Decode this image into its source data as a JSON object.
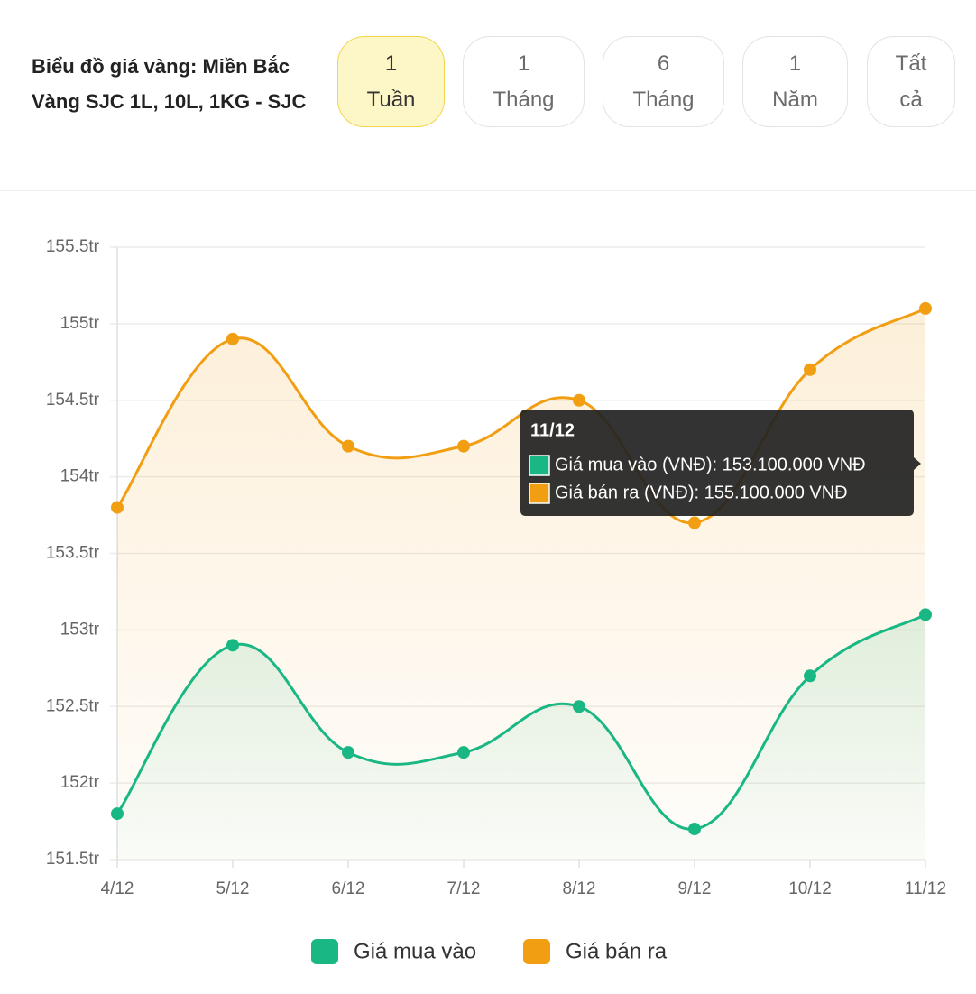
{
  "header": {
    "title": "Biểu đồ giá vàng: Miền Bắc Vàng SJC 1L, 10L, 1KG - SJC",
    "ranges": [
      [
        "1",
        "Tuần"
      ],
      [
        "1",
        "Tháng"
      ],
      [
        "6",
        "Tháng"
      ],
      [
        "1",
        "Năm"
      ],
      [
        "Tất",
        "cả"
      ]
    ]
  },
  "chart_data": {
    "type": "line",
    "categories": [
      "4/12",
      "5/12",
      "6/12",
      "7/12",
      "8/12",
      "9/12",
      "10/12",
      "11/12"
    ],
    "series": [
      {
        "name": "Giá mua vào",
        "color": "#19b783",
        "values": [
          151.8,
          152.9,
          152.2,
          152.2,
          152.5,
          151.7,
          152.7,
          153.1
        ]
      },
      {
        "name": "Giá bán ra",
        "color": "#f29e12",
        "values": [
          153.8,
          154.9,
          154.2,
          154.2,
          154.5,
          153.7,
          154.7,
          155.1
        ]
      }
    ],
    "ylim": [
      151.5,
      155.5
    ],
    "yticks": [
      {
        "value": 151.5,
        "label": "151.5tr"
      },
      {
        "value": 152,
        "label": "152tr"
      },
      {
        "value": 152.5,
        "label": "152.5tr"
      },
      {
        "value": 153,
        "label": "153tr"
      },
      {
        "value": 153.5,
        "label": "153.5tr"
      },
      {
        "value": 154,
        "label": "154tr"
      },
      {
        "value": 154.5,
        "label": "154.5tr"
      },
      {
        "value": 155,
        "label": "155tr"
      },
      {
        "value": 155.5,
        "label": "155.5tr"
      }
    ],
    "grid": true,
    "tooltip": {
      "title": "11/12",
      "lines": [
        "Giá mua vào (VNĐ): 153.100.000 VNĐ",
        "Giá bán ra (VNĐ): 155.100.000 VNĐ"
      ]
    }
  }
}
